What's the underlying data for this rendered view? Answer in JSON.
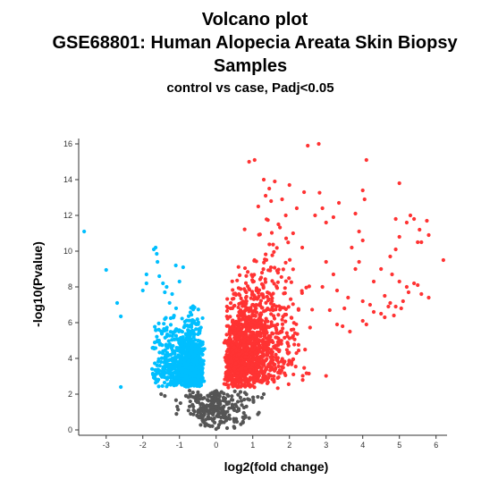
{
  "chart_data": {
    "type": "scatter",
    "title_lines": [
      "Volcano plot",
      "GSE68801: Human Alopecia Areata Skin Biopsy",
      "Samples"
    ],
    "subtitle": "control vs case, Padj<0.05",
    "xlabel": "log2(fold change)",
    "ylabel": "-log10(Pvalue)",
    "xlim": [
      -3.75,
      6.3
    ],
    "ylim": [
      -0.3,
      16.3
    ],
    "x_ticks": [
      -3,
      -2,
      -1,
      0,
      1,
      2,
      3,
      4,
      5,
      6
    ],
    "y_ticks": [
      0,
      2,
      4,
      6,
      8,
      10,
      12,
      14,
      16
    ],
    "x_tick_labels": [
      "-3",
      "-2",
      "-1",
      "0",
      "1",
      "2",
      "3",
      "4",
      "5",
      "6"
    ],
    "y_tick_labels": [
      "0",
      "2",
      "4",
      "6",
      "8",
      "10",
      "12",
      "14",
      "16"
    ],
    "grid": false,
    "legend": "none",
    "series": [
      {
        "key": "down",
        "color": "#00bfff",
        "points": [
          [
            -3.6,
            11.1
          ],
          [
            -3.0,
            8.95
          ],
          [
            -2.7,
            7.1
          ],
          [
            -2.6,
            6.35
          ],
          [
            -2.6,
            2.4
          ],
          [
            -2.0,
            7.8
          ],
          [
            -1.9,
            8.2
          ],
          [
            -1.9,
            8.7
          ],
          [
            -1.7,
            10.1
          ],
          [
            -1.65,
            10.2
          ],
          [
            -1.62,
            9.85
          ],
          [
            -1.6,
            9.4
          ],
          [
            -1.55,
            8.6
          ],
          [
            -1.45,
            8.2
          ],
          [
            -1.4,
            7.7
          ],
          [
            -1.35,
            8.0
          ],
          [
            -1.2,
            7.6
          ],
          [
            -1.1,
            9.2
          ],
          [
            -1.0,
            8.3
          ],
          [
            -0.9,
            9.1
          ],
          [
            -1.6,
            5.0
          ],
          [
            -1.5,
            3.8
          ],
          [
            -1.45,
            4.4
          ],
          [
            -1.4,
            6.2
          ],
          [
            -1.4,
            3.4
          ]
        ]
      },
      {
        "key": "up",
        "color": "#ff3333",
        "points": [
          [
            0.9,
            15.0
          ],
          [
            1.05,
            15.1
          ],
          [
            1.3,
            14.0
          ],
          [
            1.45,
            13.5
          ],
          [
            1.6,
            13.9
          ],
          [
            1.8,
            12.9
          ],
          [
            2.0,
            13.7
          ],
          [
            2.2,
            12.4
          ],
          [
            2.4,
            13.3
          ],
          [
            2.5,
            15.9
          ],
          [
            2.8,
            16.0
          ],
          [
            2.7,
            12.0
          ],
          [
            2.9,
            12.4
          ],
          [
            3.0,
            11.6
          ],
          [
            3.2,
            11.9
          ],
          [
            3.35,
            12.7
          ],
          [
            3.0,
            9.4
          ],
          [
            3.2,
            8.7
          ],
          [
            2.9,
            8.0
          ],
          [
            3.3,
            7.8
          ],
          [
            3.1,
            6.7
          ],
          [
            3.45,
            5.8
          ],
          [
            3.65,
            5.5
          ],
          [
            3.3,
            5.9
          ],
          [
            3.5,
            6.8
          ],
          [
            3.6,
            7.4
          ],
          [
            4.0,
            13.4
          ],
          [
            4.05,
            12.9
          ],
          [
            4.1,
            15.1
          ],
          [
            3.8,
            12.1
          ],
          [
            3.9,
            11.1
          ],
          [
            4.0,
            10.6
          ],
          [
            3.7,
            10.2
          ],
          [
            3.9,
            9.4
          ],
          [
            3.8,
            9.0
          ],
          [
            4.0,
            7.2
          ],
          [
            4.2,
            7.0
          ],
          [
            4.3,
            8.3
          ],
          [
            4.5,
            9.0
          ],
          [
            4.3,
            6.6
          ],
          [
            4.6,
            6.3
          ],
          [
            4.7,
            6.9
          ],
          [
            4.5,
            6.5
          ],
          [
            4.1,
            5.9
          ],
          [
            4.0,
            6.1
          ],
          [
            4.9,
            11.8
          ],
          [
            5.0,
            10.8
          ],
          [
            5.2,
            11.6
          ],
          [
            5.3,
            12.0
          ],
          [
            5.4,
            11.8
          ],
          [
            5.5,
            10.5
          ],
          [
            5.55,
            11.2
          ],
          [
            5.6,
            10.5
          ],
          [
            5.8,
            10.9
          ],
          [
            5.75,
            11.7
          ],
          [
            5.0,
            13.8
          ],
          [
            4.9,
            10.1
          ],
          [
            4.75,
            9.7
          ],
          [
            4.8,
            8.7
          ],
          [
            5.0,
            8.3
          ],
          [
            5.2,
            8.0
          ],
          [
            5.4,
            8.2
          ],
          [
            5.5,
            8.1
          ],
          [
            5.6,
            7.6
          ],
          [
            5.1,
            7.2
          ],
          [
            4.9,
            6.9
          ],
          [
            4.75,
            7.1
          ],
          [
            4.6,
            7.5
          ],
          [
            4.85,
            6.4
          ],
          [
            5.05,
            6.8
          ],
          [
            5.25,
            7.7
          ],
          [
            6.2,
            9.5
          ],
          [
            5.8,
            7.4
          ],
          [
            2.35,
            10.2
          ],
          [
            2.1,
            11.0
          ],
          [
            1.9,
            12.0
          ],
          [
            1.7,
            11.5
          ],
          [
            1.5,
            12.8
          ],
          [
            1.35,
            13.1
          ],
          [
            1.15,
            12.5
          ]
        ]
      },
      {
        "key": "ns",
        "color": "#555555",
        "points": [
          [
            -1.5,
            2.0
          ],
          [
            -1.4,
            1.9
          ],
          [
            1.25,
            1.8
          ],
          [
            1.3,
            2.0
          ],
          [
            0.0,
            0.05
          ],
          [
            0.3,
            0.1
          ]
        ]
      }
    ]
  }
}
